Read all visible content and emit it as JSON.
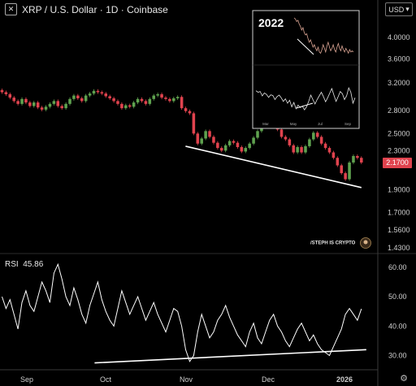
{
  "header": {
    "title": "XRP / U.S. Dollar · 1D · Coinbase",
    "icon": "collapse-icon"
  },
  "currency_button": {
    "label": "USD",
    "icon": "chevron-down-icon"
  },
  "current_price_tag": "2.1700",
  "rsi_label": "RSI",
  "rsi_value": "45.86",
  "watermark_text": "/STEPH IS CRYPTO",
  "inset": {
    "title": "2022",
    "month_labels": [
      "Mar",
      "May",
      "Jul",
      "Sep"
    ]
  },
  "colors": {
    "up": "#5fa24f",
    "down": "#e0434e",
    "background": "#000000",
    "line": "#ffffff",
    "price_tag": "#e0434e"
  },
  "chart_data": [
    {
      "type": "candlestick",
      "title": "XRP / U.S. Dollar · 1D · Coinbase",
      "x_tick_labels": [
        "Sep",
        "Oct",
        "Nov",
        "Dec",
        "2026"
      ],
      "y_tick_labels": [
        "4.0000",
        "3.6000",
        "3.2000",
        "2.8000",
        "2.5000",
        "2.3000",
        "2.1700",
        "1.9000",
        "1.7000",
        "1.5600",
        "1.4300"
      ],
      "y_scale": "log",
      "ylim": [
        1.43,
        4.4
      ],
      "current_price": 2.17,
      "closes": [
        3.06,
        3.03,
        2.98,
        2.93,
        2.89,
        2.96,
        2.91,
        2.86,
        2.91,
        2.84,
        2.81,
        2.85,
        2.89,
        2.93,
        2.86,
        2.83,
        2.89,
        2.96,
        3.01,
        2.97,
        2.93,
        3.01,
        3.04,
        3.08,
        3.06,
        3.04,
        3.0,
        2.97,
        2.93,
        2.89,
        2.83,
        2.87,
        2.85,
        2.91,
        2.96,
        2.93,
        2.89,
        2.96,
        3.01,
        3.03,
        2.98,
        2.96,
        2.93,
        2.97,
        2.99,
        2.83,
        2.79,
        2.76,
        2.5,
        2.38,
        2.44,
        2.53,
        2.46,
        2.39,
        2.33,
        2.3,
        2.36,
        2.41,
        2.39,
        2.34,
        2.29,
        2.33,
        2.38,
        2.45,
        2.53,
        2.61,
        2.63,
        2.6,
        2.58,
        2.55,
        2.46,
        2.43,
        2.36,
        2.28,
        2.34,
        2.28,
        2.35,
        2.43,
        2.51,
        2.46,
        2.38,
        2.33,
        2.28,
        2.22,
        2.14,
        2.06,
        2.0,
        2.17,
        2.24,
        2.22,
        2.17
      ],
      "trendline": {
        "from": [
          48,
          2.35
        ],
        "to": [
          90,
          1.92
        ]
      }
    },
    {
      "type": "line",
      "title": "RSI",
      "last_value": 45.86,
      "y_tick_labels": [
        "60.00",
        "50.00",
        "40.00",
        "30.00"
      ],
      "ylim": [
        26,
        63
      ],
      "values": [
        50,
        46,
        49,
        44,
        39,
        48,
        52,
        47,
        45,
        50,
        55,
        52,
        48,
        58,
        61,
        56,
        50,
        47,
        53,
        49,
        44,
        41,
        47,
        51,
        55,
        49,
        45,
        42,
        40,
        46,
        52,
        48,
        44,
        47,
        50,
        46,
        42,
        45,
        48,
        44,
        41,
        38,
        42,
        46,
        45,
        40,
        32,
        28,
        30,
        38,
        44,
        40,
        36,
        38,
        42,
        44,
        47,
        43,
        40,
        37,
        35,
        33,
        38,
        41,
        36,
        34,
        38,
        42,
        44,
        40,
        38,
        35,
        33,
        36,
        39,
        41,
        38,
        35,
        37,
        34,
        32,
        31,
        30,
        33,
        36,
        39,
        44,
        46,
        44,
        42,
        45.86
      ],
      "trendline": {
        "from": [
          24,
          27.5
        ],
        "to": [
          90,
          32
        ]
      }
    },
    {
      "type": "line",
      "title": "2022",
      "x_tick_labels": [
        "Mar",
        "May",
        "Jul",
        "Sep"
      ],
      "series": [
        {
          "values": [
            1.0,
            0.99,
            0.97,
            0.98,
            0.95,
            0.93,
            0.9,
            0.92,
            0.88,
            0.86,
            0.87,
            0.83,
            0.8,
            0.82,
            0.79,
            0.76,
            0.78,
            0.75,
            0.73,
            0.76,
            0.72,
            0.71,
            0.74,
            0.78,
            0.75,
            0.72,
            0.77,
            0.8,
            0.76,
            0.73,
            0.75,
            0.78,
            0.74,
            0.72,
            0.76,
            0.79,
            0.75,
            0.73,
            0.77,
            0.74,
            0.72,
            0.75,
            0.73,
            0.71,
            0.74,
            0.72,
            0.73,
            0.72
          ]
        },
        {
          "values": [
            0.74,
            0.7,
            0.72,
            0.6,
            0.68,
            0.64,
            0.56,
            0.63,
            0.61,
            0.5,
            0.58,
            0.62,
            0.55,
            0.45,
            0.52,
            0.4,
            0.48,
            0.3,
            0.42,
            0.25,
            0.35,
            0.28,
            0.32,
            0.22,
            0.3,
            0.45,
            0.62,
            0.5,
            0.38,
            0.5,
            0.6,
            0.7,
            0.58,
            0.44,
            0.55,
            0.68,
            0.8,
            0.62,
            0.45,
            0.58,
            0.72,
            0.66,
            0.5,
            0.6,
            0.82,
            0.7,
            0.4,
            0.55
          ]
        }
      ]
    }
  ]
}
